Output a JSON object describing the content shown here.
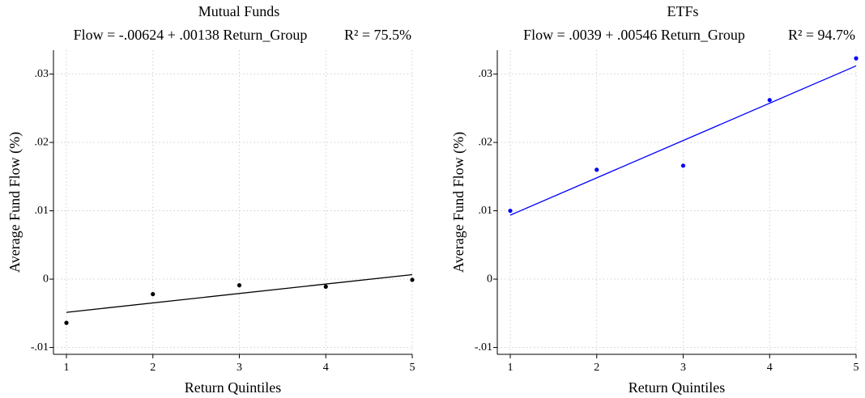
{
  "chart_data": [
    {
      "type": "scatter",
      "title": "Mutual Funds",
      "subtitle": "Flow = -.00624 + .00138 Return_Group",
      "r_squared_label": "R² = 75.5%",
      "fit": {
        "intercept": -0.00624,
        "slope": 0.00138
      },
      "x_label": "Return Quintiles",
      "y_label": "Average Fund Flow (%)",
      "x": [
        1,
        2,
        3,
        4,
        5
      ],
      "values": [
        -0.0064,
        -0.0022,
        -0.0009,
        -0.0011,
        -0.0001
      ],
      "color": "#000000",
      "xlim": [
        0.85,
        5
      ],
      "ylim": [
        -0.011,
        0.0335
      ],
      "xticks": [
        1,
        2,
        3,
        4,
        5
      ],
      "yticks": [
        {
          "value": -0.01,
          "label": "-.01"
        },
        0,
        {
          "value": 0.01,
          "label": ".01"
        },
        {
          "value": 0.02,
          "label": ".02"
        },
        {
          "value": 0.03,
          "label": ".03"
        }
      ],
      "grid": true
    },
    {
      "type": "scatter",
      "title": "ETFs",
      "subtitle": "Flow = .0039 + .00546 Return_Group",
      "r_squared_label": "R² = 94.7%",
      "fit": {
        "intercept": 0.0039,
        "slope": 0.00546
      },
      "x_label": "Return Quintiles",
      "y_label": "Average Fund Flow (%)",
      "x": [
        1,
        2,
        3,
        4,
        5
      ],
      "values": [
        0.01,
        0.016,
        0.0166,
        0.0262,
        0.0323
      ],
      "color": "#0000ff",
      "xlim": [
        0.85,
        5
      ],
      "ylim": [
        -0.011,
        0.0335
      ],
      "xticks": [
        1,
        2,
        3,
        4,
        5
      ],
      "yticks": [
        {
          "value": -0.01,
          "label": "-.01"
        },
        0,
        {
          "value": 0.01,
          "label": ".01"
        },
        {
          "value": 0.02,
          "label": ".02"
        },
        {
          "value": 0.03,
          "label": ".03"
        }
      ],
      "grid": true
    }
  ]
}
